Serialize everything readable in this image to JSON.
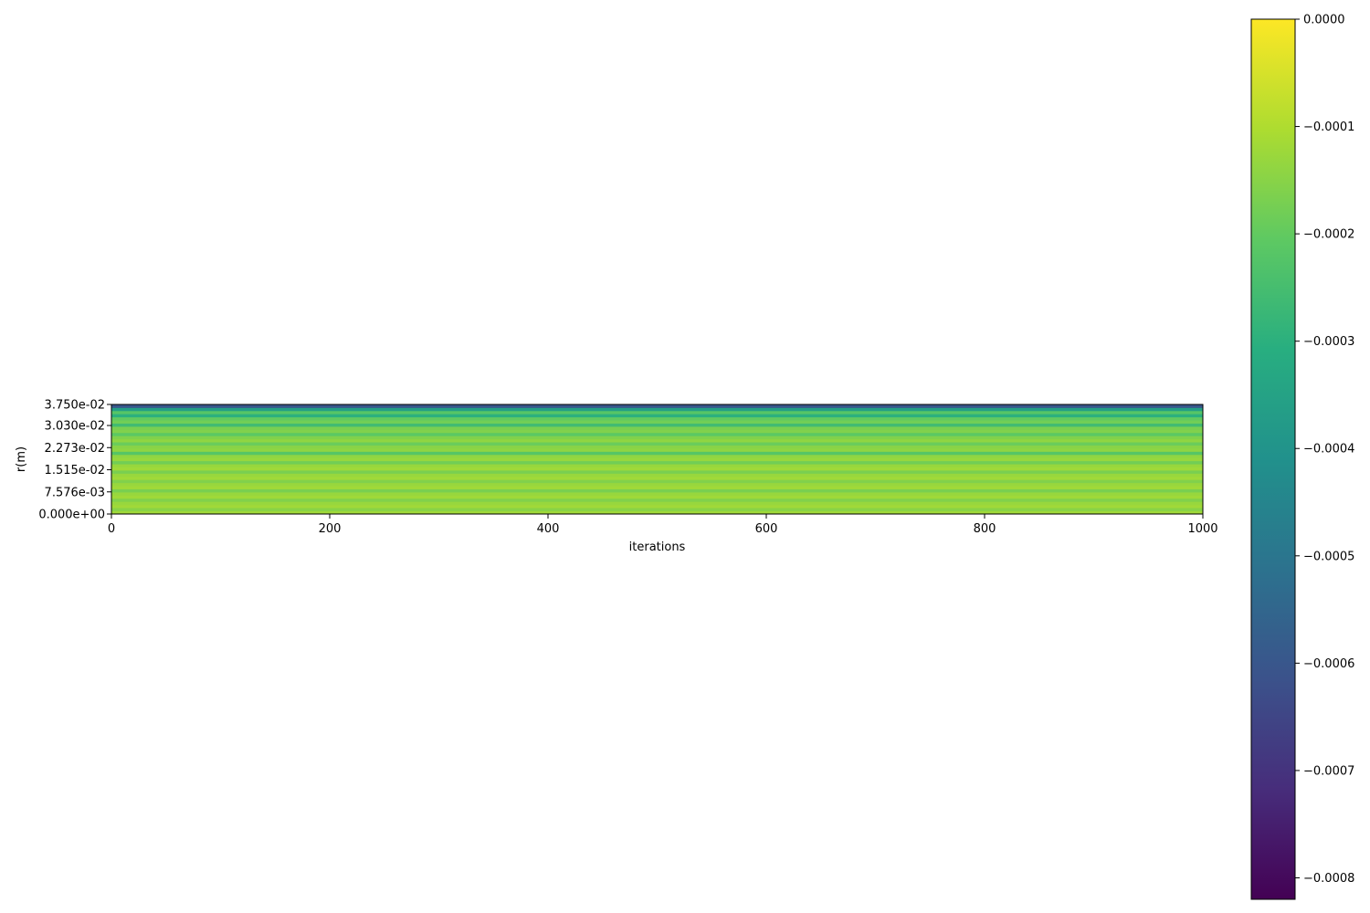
{
  "chart_data": {
    "type": "heatmap",
    "title": "",
    "xlabel": "iterations",
    "ylabel": "r(m)",
    "xlim": [
      0,
      1000
    ],
    "ylim": [
      0,
      0.0375
    ],
    "x_ticks": [
      0,
      200,
      400,
      600,
      800,
      1000
    ],
    "x_tick_labels": [
      "0",
      "200",
      "400",
      "600",
      "800",
      "1000"
    ],
    "y_ticks": [
      0,
      0.007576,
      0.01515,
      0.02273,
      0.0303,
      0.0375
    ],
    "y_tick_labels": [
      "0.000e+00",
      "7.576e-03",
      "1.515e-02",
      "2.273e-02",
      "3.030e-02",
      "3.750e-02"
    ],
    "colormap": "viridis",
    "colorbar": {
      "vmin": -0.00082,
      "vmax": 0.0,
      "ticks": [
        0.0,
        -0.0001,
        -0.0002,
        -0.0003,
        -0.0004,
        -0.0005,
        -0.0006,
        -0.0007,
        -0.0008
      ],
      "tick_labels": [
        "0.0000",
        "−0.0001",
        "−0.0002",
        "−0.0003",
        "−0.0004",
        "−0.0005",
        "−0.0006",
        "−0.0007",
        "−0.0008"
      ]
    },
    "note_values": "values are constant along iterations; listed per radial row from r=0 (bottom) to r=0.0375 (top)",
    "row_values": [
      -0.00012,
      -0.00015,
      -0.00012,
      -0.00013,
      -0.00016,
      -0.00012,
      -0.00013,
      -0.00017,
      -0.00012,
      -0.00013,
      -0.00016,
      -0.00012,
      -0.00013,
      -0.00017,
      -0.00012,
      -0.00013,
      -0.00018,
      -0.00013,
      -0.00014,
      -0.00022,
      -0.00014,
      -0.00015,
      -0.00019,
      -0.00014,
      -0.00016,
      -0.00021,
      -0.00016,
      -0.00017,
      -0.00026,
      -0.00018,
      -0.0002,
      -0.0003,
      -0.00022,
      -0.00036,
      -0.0006
    ]
  }
}
